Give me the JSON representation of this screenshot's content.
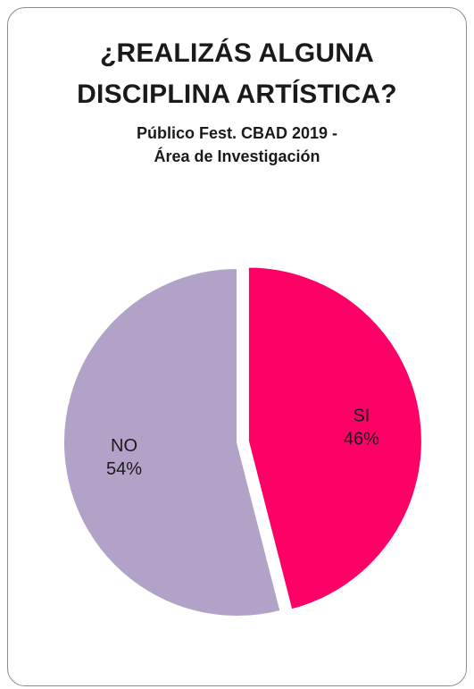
{
  "chart_data": {
    "type": "pie",
    "title": "¿REALIZÁS ALGUNA DISCIPLINA ARTÍSTICA?",
    "title_lines": [
      "¿REALIZÁS ALGUNA",
      "DISCIPLINA ARTÍSTICA?"
    ],
    "subtitle_lines": [
      "Público Fest. CBAD 2019 -",
      "Área de Investigación"
    ],
    "categories": [
      "SI",
      "NO"
    ],
    "values": [
      46,
      54
    ],
    "data_labels": [
      "46%",
      "54%"
    ],
    "colors": [
      "#ff0066",
      "#b3a2c7"
    ],
    "exploded": "SI",
    "legend": "none"
  }
}
